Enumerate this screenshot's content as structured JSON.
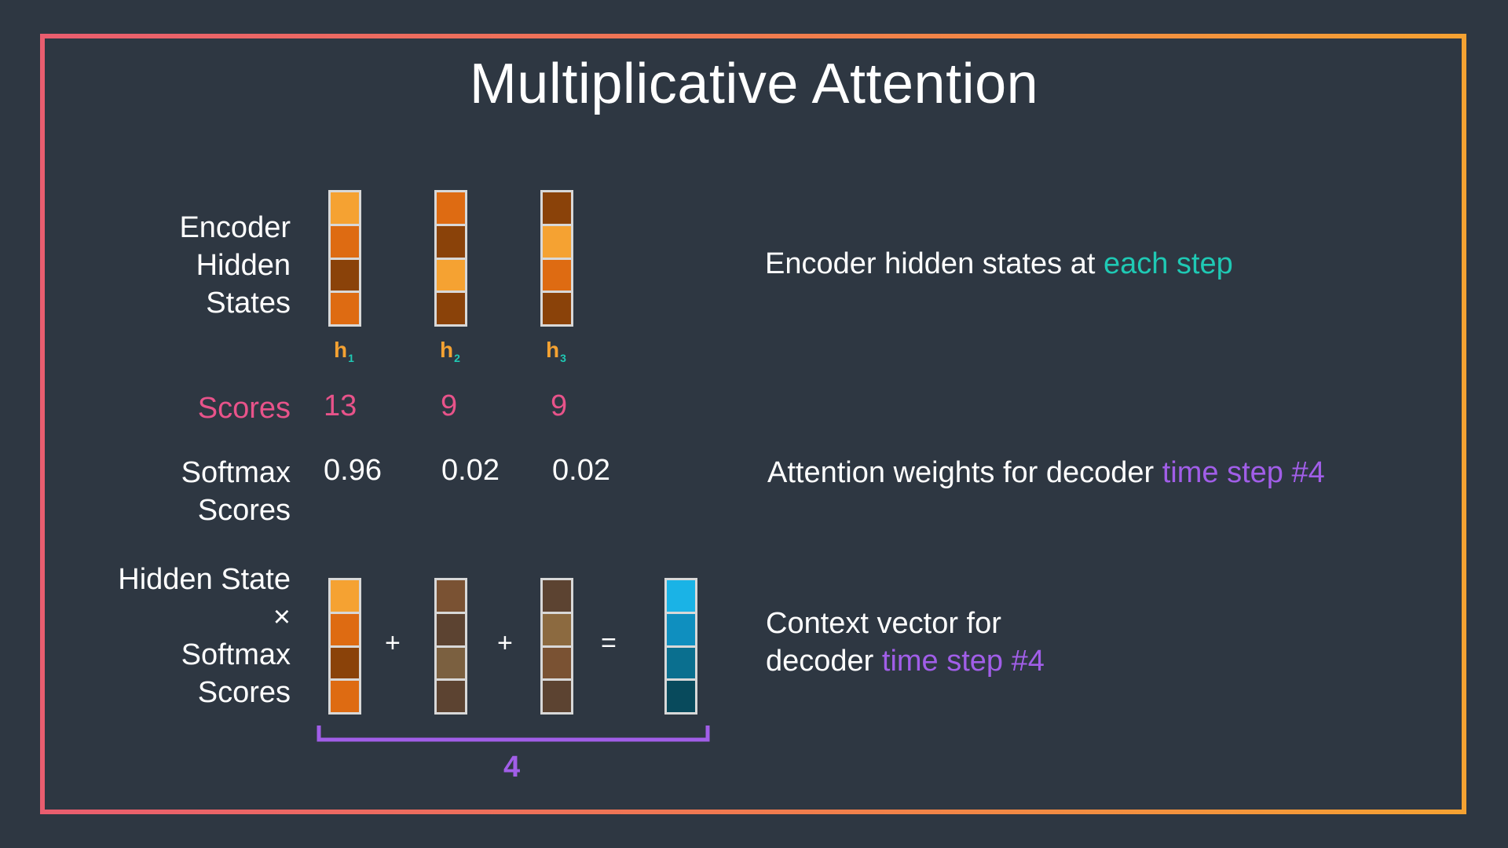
{
  "title": "Multiplicative Attention",
  "labels": {
    "encoder": [
      "Encoder",
      "Hidden",
      "States"
    ],
    "scores": "Scores",
    "softmax": [
      "Softmax",
      "Scores"
    ],
    "hidden_times": [
      "Hidden State",
      "×",
      "Softmax",
      "Scores"
    ]
  },
  "hidden_states": [
    {
      "name": "h",
      "sub": "1",
      "colors": [
        "#f5a232",
        "#de6b12",
        "#8a4209",
        "#de6b12"
      ]
    },
    {
      "name": "h",
      "sub": "2",
      "colors": [
        "#de6b12",
        "#8a4209",
        "#f5a232",
        "#8a4209"
      ]
    },
    {
      "name": "h",
      "sub": "3",
      "colors": [
        "#8a4209",
        "#f5a232",
        "#de6b12",
        "#8a4209"
      ]
    }
  ],
  "scores": [
    "13",
    "9",
    "9"
  ],
  "softmax": [
    "0.96",
    "0.02",
    "0.02"
  ],
  "weighted_vectors": [
    [
      "#f5a232",
      "#de6b12",
      "#8a4209",
      "#de6b12"
    ],
    [
      "#7a5233",
      "#5c4331",
      "#7b6040",
      "#5c4331"
    ],
    [
      "#5c4331",
      "#8c6a40",
      "#7a5233",
      "#5c4331"
    ]
  ],
  "context_vector": [
    "#1ab3e6",
    "#0f8fbf",
    "#0a6f8f",
    "#084a5c"
  ],
  "operators": {
    "plus1": "+",
    "plus2": "+",
    "equals": "="
  },
  "bracket_label": "4",
  "descriptions": {
    "encoder": {
      "text": "Encoder hidden states at ",
      "highlight": "each step"
    },
    "softmax": {
      "text": "Attention weights for decoder ",
      "highlight": "time step #4"
    },
    "context": {
      "line1": "Context vector for",
      "line2_text": "decoder ",
      "line2_highlight": "time step #4"
    }
  },
  "colors": {
    "background": "#2e3742",
    "teal": "#1fc9b4",
    "purple": "#a15ee8",
    "pink": "#e8538a",
    "orange": "#f5a232"
  }
}
